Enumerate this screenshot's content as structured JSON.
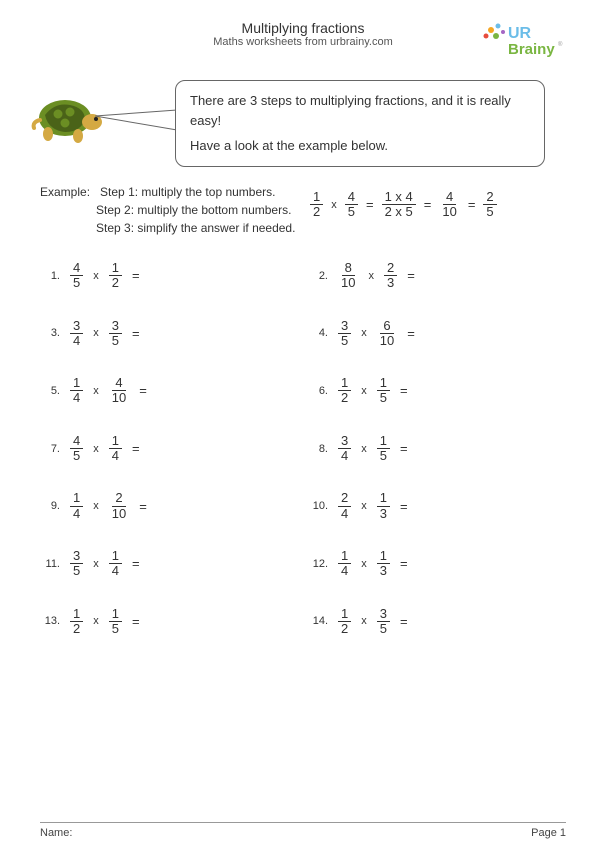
{
  "header": {
    "title": "Multiplying fractions",
    "subtitle": "Maths worksheets from urbrainy.com",
    "logo_text_ur": "UR",
    "logo_text_brainy": "Brainy",
    "logo_colors": {
      "ur": "#6bbde8",
      "brainy": "#7ab642",
      "dot1": "#f5a623",
      "dot2": "#6bbde8",
      "dot3": "#e74c3c",
      "dot4": "#7ab642",
      "dot5": "#a566c4"
    }
  },
  "speech": {
    "line1": "There are 3 steps to multiplying fractions, and it is really easy!",
    "line2": "Have a look at the example below."
  },
  "example": {
    "label": "Example:",
    "step1": "Step 1: multiply the top numbers.",
    "step2": "Step 2: multiply the bottom numbers.",
    "step3": "Step 3: simplify the answer if needed.",
    "eq": {
      "f1": {
        "n": "1",
        "d": "2"
      },
      "f2": {
        "n": "4",
        "d": "5"
      },
      "f3": {
        "n": "1 x 4",
        "d": "2 x 5"
      },
      "f4": {
        "n": "4",
        "d": "10"
      },
      "f5": {
        "n": "2",
        "d": "5"
      }
    }
  },
  "problems": [
    {
      "num": "1.",
      "f1": {
        "n": "4",
        "d": "5"
      },
      "f2": {
        "n": "1",
        "d": "2"
      }
    },
    {
      "num": "2.",
      "f1": {
        "n": "8",
        "d": "10"
      },
      "f2": {
        "n": "2",
        "d": "3"
      }
    },
    {
      "num": "3.",
      "f1": {
        "n": "3",
        "d": "4"
      },
      "f2": {
        "n": "3",
        "d": "5"
      }
    },
    {
      "num": "4.",
      "f1": {
        "n": "3",
        "d": "5"
      },
      "f2": {
        "n": "6",
        "d": "10"
      }
    },
    {
      "num": "5.",
      "f1": {
        "n": "1",
        "d": "4"
      },
      "f2": {
        "n": "4",
        "d": "10"
      }
    },
    {
      "num": "6.",
      "f1": {
        "n": "1",
        "d": "2"
      },
      "f2": {
        "n": "1",
        "d": "5"
      }
    },
    {
      "num": "7.",
      "f1": {
        "n": "4",
        "d": "5"
      },
      "f2": {
        "n": "1",
        "d": "4"
      }
    },
    {
      "num": "8.",
      "f1": {
        "n": "3",
        "d": "4"
      },
      "f2": {
        "n": "1",
        "d": "5"
      }
    },
    {
      "num": "9.",
      "f1": {
        "n": "1",
        "d": "4"
      },
      "f2": {
        "n": "2",
        "d": "10"
      }
    },
    {
      "num": "10.",
      "f1": {
        "n": "2",
        "d": "4"
      },
      "f2": {
        "n": "1",
        "d": "3"
      }
    },
    {
      "num": "11.",
      "f1": {
        "n": "3",
        "d": "5"
      },
      "f2": {
        "n": "1",
        "d": "4"
      }
    },
    {
      "num": "12.",
      "f1": {
        "n": "1",
        "d": "4"
      },
      "f2": {
        "n": "1",
        "d": "3"
      }
    },
    {
      "num": "13.",
      "f1": {
        "n": "1",
        "d": "2"
      },
      "f2": {
        "n": "1",
        "d": "5"
      }
    },
    {
      "num": "14.",
      "f1": {
        "n": "1",
        "d": "2"
      },
      "f2": {
        "n": "3",
        "d": "5"
      }
    }
  ],
  "footer": {
    "name_label": "Name:",
    "page_label": "Page 1"
  },
  "style": {
    "turtle_shell": "#6b8e23",
    "turtle_shell_dark": "#4a6318",
    "turtle_body": "#d4a943",
    "turtle_eye": "#222"
  }
}
